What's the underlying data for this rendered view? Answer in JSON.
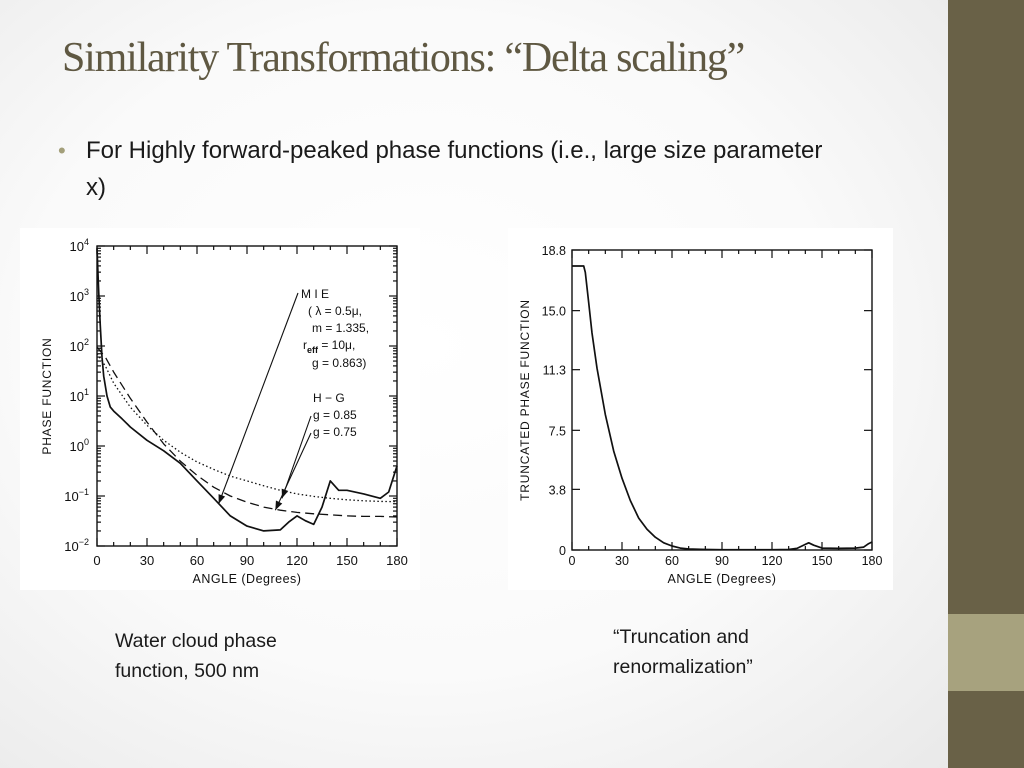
{
  "slide": {
    "title": "Similarity Transformations: “Delta scaling”",
    "bullet": "For Highly forward-peaked phase functions (i.e., large size parameter x)",
    "caption_left": "Water cloud phase function, 500 nm",
    "caption_right": "“Truncation and renormalization”",
    "colors": {
      "title": "#5f5842",
      "sidebar": "#696147",
      "sidebar_accent": "#a7a27e",
      "bullet": "#a39f7a"
    }
  },
  "chart_data": [
    {
      "type": "line",
      "xlabel": "ANGLE (Degrees)",
      "ylabel": "PHASE FUNCTION",
      "xlim": [
        0,
        180
      ],
      "ylim": [
        0.01,
        10000
      ],
      "yscale": "log",
      "xticks": [
        "0",
        "30",
        "60",
        "90",
        "120",
        "150",
        "180"
      ],
      "yticks": [
        {
          "base": "10",
          "exp": "4"
        },
        {
          "base": "10",
          "exp": "3"
        },
        {
          "base": "10",
          "exp": "2"
        },
        {
          "base": "10",
          "exp": "1"
        },
        {
          "base": "10",
          "exp": "0"
        },
        {
          "base": "10",
          "exp": "−1"
        },
        {
          "base": "10",
          "exp": "−2"
        }
      ],
      "annotations": {
        "mie": [
          "M I E",
          "( λ = 0.5μ,",
          "m = 1.335,",
          "r",
          "eff",
          " = 10μ,",
          "g = 0.863)"
        ],
        "hg": [
          "H − G",
          "g = 0.85",
          "g = 0.75"
        ]
      },
      "series": [
        {
          "style": "solid",
          "x": [
            0,
            1,
            2,
            3,
            4,
            6,
            8,
            10,
            15,
            20,
            30,
            40,
            50,
            60,
            70,
            80,
            90,
            100,
            110,
            115,
            120,
            125,
            130,
            135,
            140,
            145,
            150,
            160,
            170,
            175,
            180
          ],
          "y": [
            9000,
            1200,
            250,
            60,
            25,
            10,
            6,
            5,
            3.5,
            2.4,
            1.3,
            0.8,
            0.45,
            0.2,
            0.09,
            0.04,
            0.025,
            0.02,
            0.021,
            0.03,
            0.04,
            0.032,
            0.027,
            0.06,
            0.2,
            0.13,
            0.13,
            0.11,
            0.09,
            0.12,
            0.4
          ]
        },
        {
          "style": "dashed",
          "x": [
            0,
            5,
            10,
            20,
            30,
            40,
            50,
            60,
            70,
            80,
            90,
            100,
            110,
            120,
            130,
            140,
            150,
            160,
            170,
            180
          ],
          "y": [
            95,
            60,
            30,
            9,
            3,
            1.1,
            0.5,
            0.26,
            0.15,
            0.1,
            0.075,
            0.06,
            0.052,
            0.047,
            0.044,
            0.042,
            0.04,
            0.039,
            0.039,
            0.038
          ]
        },
        {
          "style": "dotted",
          "x": [
            0,
            5,
            10,
            20,
            30,
            40,
            50,
            60,
            70,
            80,
            90,
            100,
            110,
            120,
            130,
            140,
            150,
            160,
            170,
            180
          ],
          "y": [
            70,
            40,
            18,
            6,
            2.6,
            1.3,
            0.75,
            0.48,
            0.34,
            0.25,
            0.2,
            0.16,
            0.13,
            0.11,
            0.098,
            0.09,
            0.084,
            0.08,
            0.078,
            0.077
          ]
        }
      ]
    },
    {
      "type": "line",
      "xlabel": "ANGLE (Degrees)",
      "ylabel": "TRUNCATED PHASE FUNCTION",
      "xlim": [
        0,
        180
      ],
      "ylim": [
        0,
        18.8
      ],
      "xticks": [
        "0",
        "30",
        "60",
        "90",
        "120",
        "150",
        "180"
      ],
      "yticks": [
        "0",
        "3.8",
        "7.5",
        "11.3",
        "15.0",
        "18.8"
      ],
      "series": [
        {
          "style": "solid",
          "x": [
            0,
            7,
            8,
            10,
            12,
            15,
            20,
            25,
            30,
            35,
            40,
            45,
            50,
            55,
            60,
            65,
            70,
            80,
            90,
            100,
            110,
            120,
            130,
            135,
            140,
            142,
            145,
            150,
            160,
            170,
            175,
            178,
            180
          ],
          "y": [
            17.8,
            17.8,
            17.4,
            15.5,
            13.6,
            11.4,
            8.5,
            6.2,
            4.5,
            3.1,
            2.0,
            1.3,
            0.8,
            0.45,
            0.25,
            0.12,
            0.06,
            0.03,
            0.02,
            0.02,
            0.02,
            0.02,
            0.03,
            0.1,
            0.35,
            0.45,
            0.3,
            0.12,
            0.1,
            0.12,
            0.18,
            0.4,
            0.5
          ]
        }
      ]
    }
  ]
}
